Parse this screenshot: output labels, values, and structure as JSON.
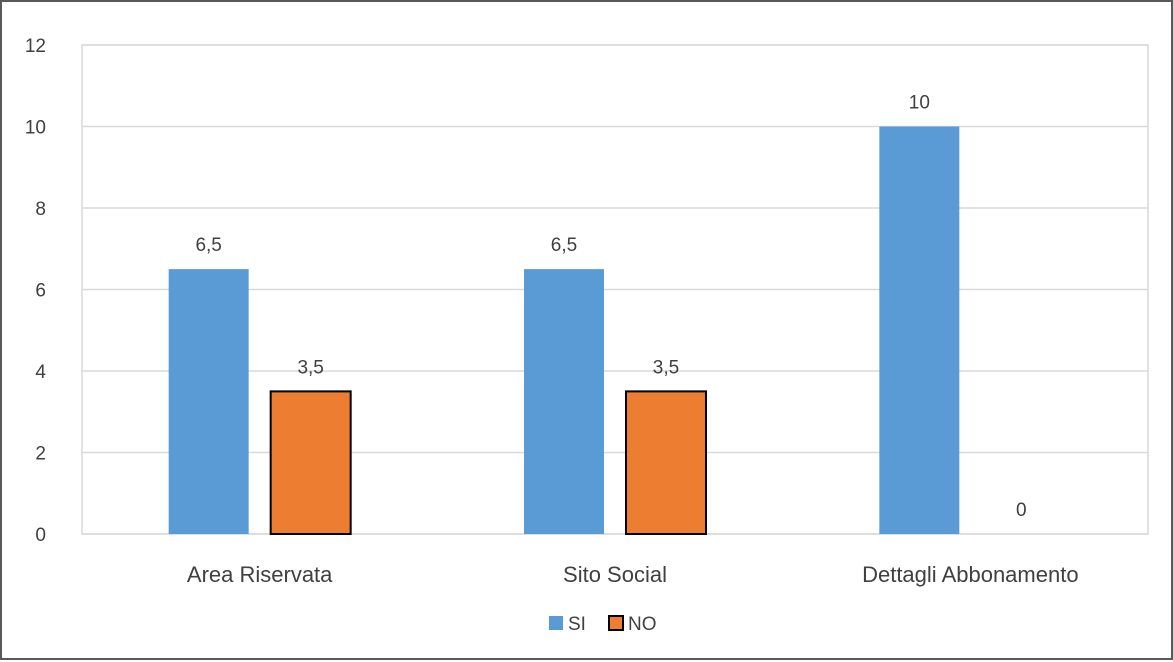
{
  "chart_data": {
    "type": "bar",
    "title": "",
    "xlabel": "",
    "ylabel": "",
    "categories": [
      "Area Riservata",
      "Sito Social",
      "Dettagli Abbonamento"
    ],
    "series": [
      {
        "name": "SI",
        "values": [
          6.5,
          6.5,
          10
        ],
        "labels": [
          "6,5",
          "6,5",
          "10"
        ],
        "color": "#5b9bd5"
      },
      {
        "name": "NO",
        "values": [
          3.5,
          3.5,
          0
        ],
        "labels": [
          "3,5",
          "3,5",
          "0"
        ],
        "color": "#ed7d31"
      }
    ],
    "ylim": [
      0,
      12
    ],
    "yticks": [
      0,
      2,
      4,
      6,
      8,
      10,
      12
    ],
    "grid": true,
    "legend": "bottom-center"
  }
}
